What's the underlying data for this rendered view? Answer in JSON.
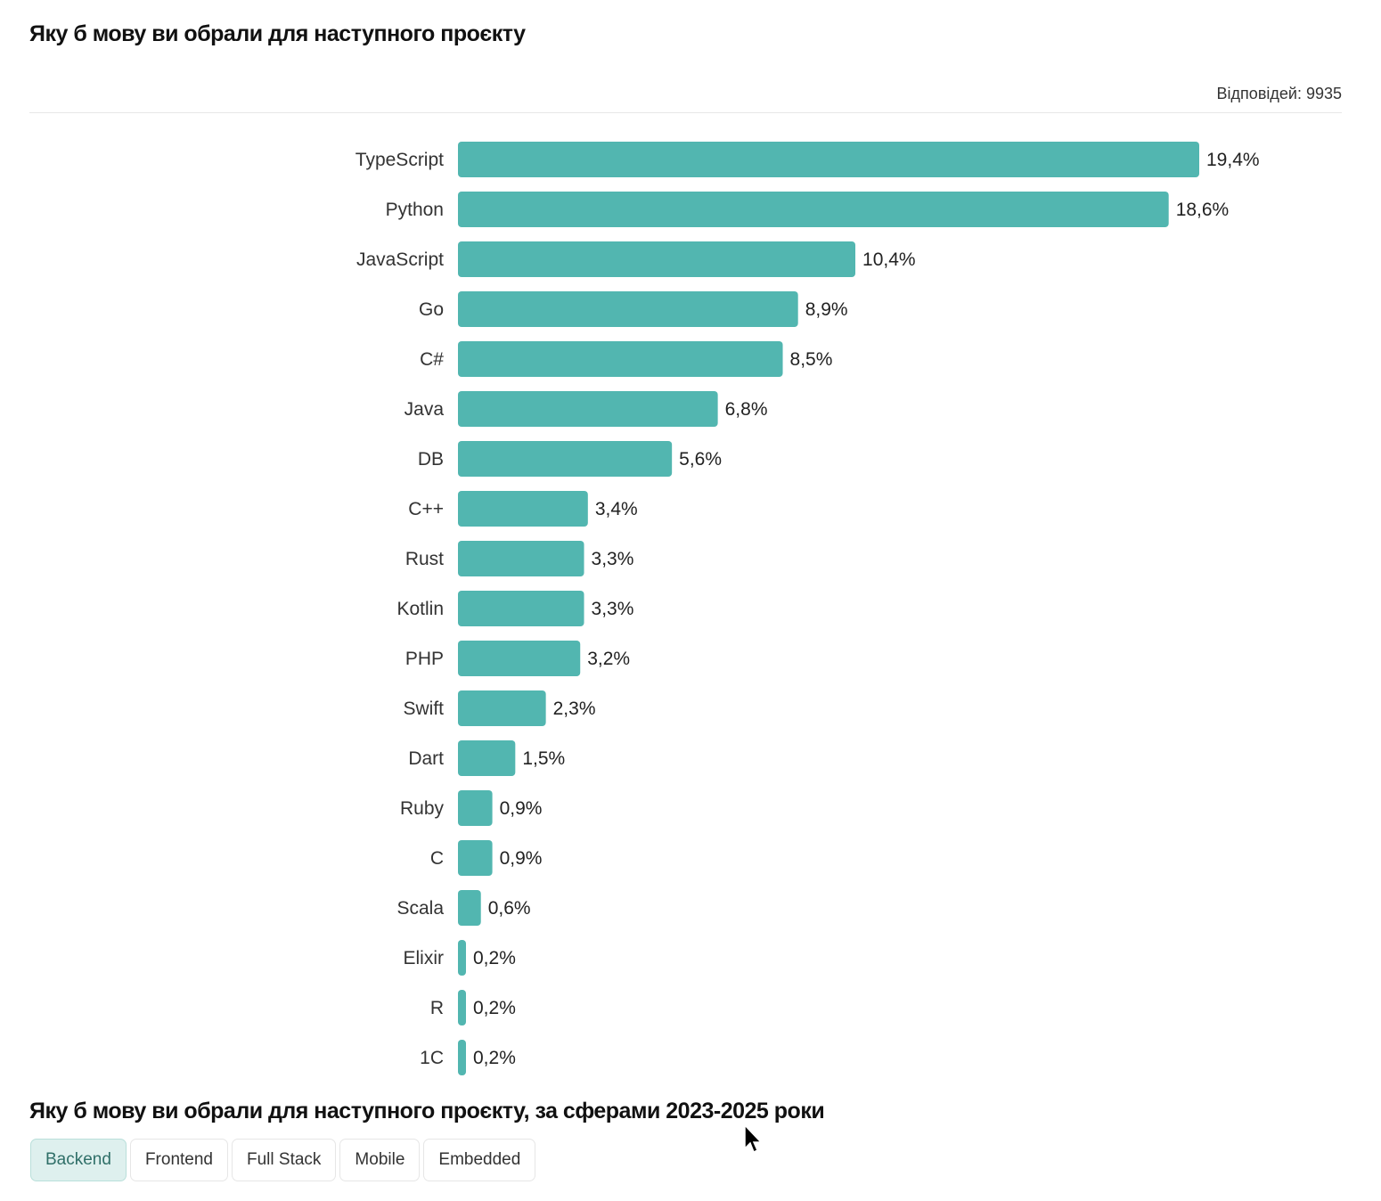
{
  "title": "Яку б мову ви обрали для наступного проєкту",
  "responses": "Відповідей: 9935",
  "subtitle": "Яку б мову ви обрали для наступного проєкту, за сферами 2023-2025 роки",
  "tabs": [
    {
      "label": "Backend",
      "active": true
    },
    {
      "label": "Frontend",
      "active": false
    },
    {
      "label": "Full Stack",
      "active": false
    },
    {
      "label": "Mobile",
      "active": false
    },
    {
      "label": "Embedded",
      "active": false
    }
  ],
  "colors": {
    "bar": "#52b6b0"
  },
  "chart_data": {
    "type": "bar",
    "orientation": "horizontal",
    "title": "Яку б мову ви обрали для наступного проєкту",
    "categories": [
      "TypeScript",
      "Python",
      "JavaScript",
      "Go",
      "C#",
      "Java",
      "DB",
      "C++",
      "Rust",
      "Kotlin",
      "PHP",
      "Swift",
      "Dart",
      "Ruby",
      "C",
      "Scala",
      "Elixir",
      "R",
      "1C"
    ],
    "values": [
      19.4,
      18.6,
      10.4,
      8.9,
      8.5,
      6.8,
      5.6,
      3.4,
      3.3,
      3.3,
      3.2,
      2.3,
      1.5,
      0.9,
      0.9,
      0.6,
      0.2,
      0.2,
      0.2
    ],
    "labels": [
      "19,4%",
      "18,6%",
      "10,4%",
      "8,9%",
      "8,5%",
      "6,8%",
      "5,6%",
      "3,4%",
      "3,3%",
      "3,3%",
      "3,2%",
      "2,3%",
      "1,5%",
      "0,9%",
      "0,9%",
      "0,6%",
      "0,2%",
      "0,2%",
      "0,2%"
    ],
    "unit": "%",
    "xlim": [
      0,
      19.4
    ],
    "grid": false
  }
}
